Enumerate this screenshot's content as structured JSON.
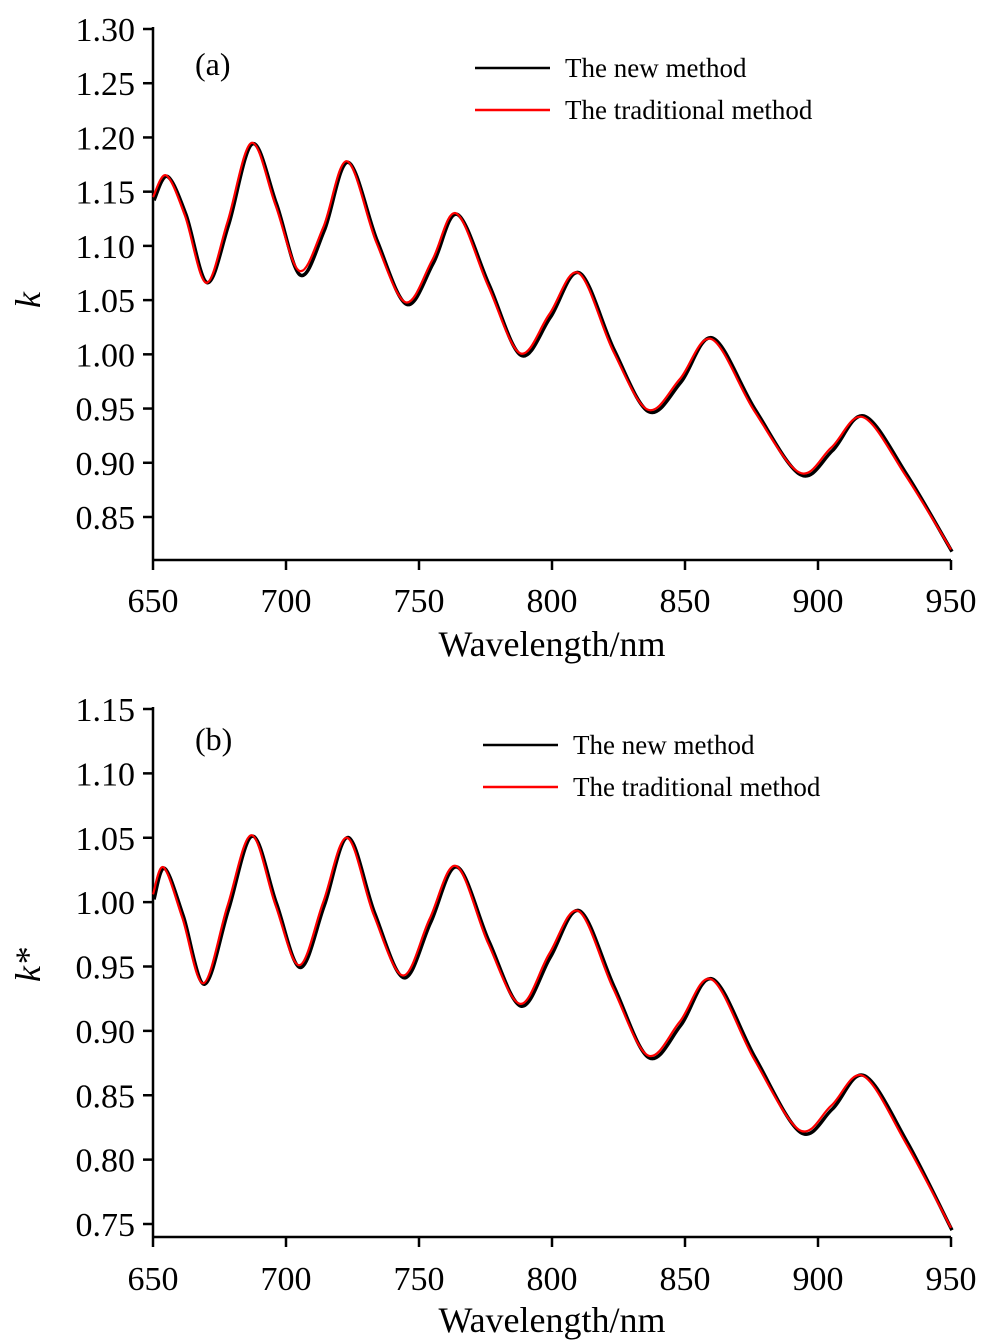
{
  "chart_data": [
    {
      "type": "line",
      "panel_label": "(a)",
      "title": "",
      "xlabel": "Wavelength/nm",
      "ylabel": "k",
      "xlim": [
        650,
        950
      ],
      "ylim": [
        0.81,
        1.3
      ],
      "xticks": [
        650,
        700,
        750,
        800,
        850,
        900,
        950
      ],
      "xtick_labels": [
        "650",
        "700",
        "750",
        "800",
        "850",
        "900",
        "950"
      ],
      "yticks": [
        0.85,
        0.9,
        0.95,
        1.0,
        1.05,
        1.1,
        1.15,
        1.2,
        1.25,
        1.3
      ],
      "ytick_labels": [
        "0.85",
        "0.90",
        "0.95",
        "1.00",
        "1.05",
        "1.10",
        "1.15",
        "1.20",
        "1.25",
        "1.30"
      ],
      "grid": false,
      "legend_position": "top-right",
      "x": [
        650,
        655,
        662,
        670,
        678,
        687,
        696,
        705,
        714,
        723,
        734,
        745,
        755,
        764,
        776,
        788,
        799,
        810,
        823,
        836,
        848,
        860,
        876,
        893,
        905,
        917,
        933,
        950
      ],
      "series": [
        {
          "name": "The new method",
          "color": "#000000",
          "values": [
            1.143,
            1.165,
            1.13,
            1.067,
            1.12,
            1.195,
            1.14,
            1.074,
            1.115,
            1.178,
            1.105,
            1.047,
            1.085,
            1.13,
            1.065,
            1.0,
            1.035,
            1.076,
            1.005,
            0.948,
            0.975,
            1.016,
            0.95,
            0.89,
            0.912,
            0.944,
            0.89,
            0.819
          ]
        },
        {
          "name": "The traditional method",
          "color": "#ff0000",
          "values": [
            1.145,
            1.165,
            1.128,
            1.066,
            1.122,
            1.195,
            1.138,
            1.077,
            1.117,
            1.178,
            1.103,
            1.048,
            1.087,
            1.13,
            1.063,
            1.001,
            1.037,
            1.075,
            1.003,
            0.949,
            0.977,
            1.014,
            0.948,
            0.891,
            0.914,
            0.942,
            0.888,
            0.82
          ]
        }
      ]
    },
    {
      "type": "line",
      "panel_label": "(b)",
      "title": "",
      "xlabel": "Wavelength/nm",
      "ylabel": "k*",
      "xlim": [
        650,
        950
      ],
      "ylim": [
        0.74,
        1.15
      ],
      "xticks": [
        650,
        700,
        750,
        800,
        850,
        900,
        950
      ],
      "xtick_labels": [
        "650",
        "700",
        "750",
        "800",
        "850",
        "900",
        "950"
      ],
      "yticks": [
        0.75,
        0.8,
        0.85,
        0.9,
        0.95,
        1.0,
        1.05,
        1.1,
        1.15
      ],
      "ytick_labels": [
        "0.75",
        "0.80",
        "0.85",
        "0.90",
        "0.95",
        "1.00",
        "1.05",
        "1.10",
        "1.15"
      ],
      "grid": false,
      "legend_position": "top-right",
      "x": [
        650,
        654,
        661,
        669,
        678,
        687,
        696,
        705,
        714,
        723,
        733,
        744,
        754,
        764,
        776,
        788,
        799,
        810,
        823,
        836,
        848,
        860,
        876,
        893,
        905,
        917,
        933,
        950
      ],
      "series": [
        {
          "name": "The new method",
          "color": "#000000",
          "values": [
            1.003,
            1.027,
            0.99,
            0.937,
            0.995,
            1.052,
            1.0,
            0.95,
            0.998,
            1.051,
            0.992,
            0.942,
            0.985,
            1.028,
            0.97,
            0.92,
            0.958,
            0.994,
            0.935,
            0.88,
            0.905,
            0.941,
            0.88,
            0.822,
            0.84,
            0.866,
            0.815,
            0.746
          ]
        },
        {
          "name": "The traditional method",
          "color": "#ff0000",
          "values": [
            1.006,
            1.027,
            0.988,
            0.937,
            0.997,
            1.052,
            0.998,
            0.951,
            1.0,
            1.05,
            0.99,
            0.943,
            0.987,
            1.028,
            0.968,
            0.921,
            0.96,
            0.993,
            0.933,
            0.881,
            0.907,
            0.94,
            0.878,
            0.823,
            0.842,
            0.865,
            0.813,
            0.747
          ]
        }
      ]
    }
  ]
}
